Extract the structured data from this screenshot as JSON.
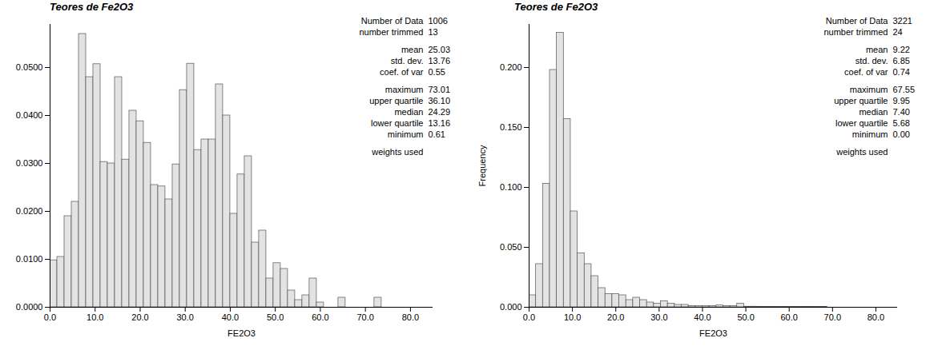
{
  "chart_data": [
    {
      "type": "histogram",
      "title": "Teores de Fe2O3",
      "x_label": "FE2O3",
      "bins": [
        0,
        1.6,
        3.2,
        4.8,
        6.4,
        8,
        9.6,
        11.2,
        12.8,
        14.4,
        16,
        17.6,
        19.2,
        20.8,
        22.4,
        24,
        25.6,
        27.2,
        28.8,
        30.4,
        32,
        33.6,
        35.2,
        36.8,
        38.4,
        40,
        41.6,
        43.2,
        44.8,
        46.4,
        48,
        49.6,
        51.2,
        52.8,
        54.4,
        56,
        57.6,
        59.2,
        60.8,
        62.4,
        64,
        65.6,
        67.2,
        68.8,
        70.4,
        72,
        73.6,
        75.2,
        76.8,
        78.4,
        80
      ],
      "values": [
        0.0098,
        0.0105,
        0.019,
        0.022,
        0.057,
        0.048,
        0.0507,
        0.0303,
        0.03,
        0.048,
        0.0308,
        0.041,
        0.0388,
        0.0343,
        0.0255,
        0.0252,
        0.0225,
        0.0298,
        0.0453,
        0.0508,
        0.0328,
        0.035,
        0.035,
        0.0465,
        0.04,
        0.0195,
        0.0277,
        0.0315,
        0.0135,
        0.016,
        0.006,
        0.0092,
        0.008,
        0.0035,
        0.0015,
        0.0025,
        0.006,
        0.001,
        0,
        0,
        0.002,
        0,
        0,
        0,
        0,
        0.002,
        0,
        0,
        0,
        0
      ],
      "color": "#e3e3e3",
      "xlim": [
        0,
        85
      ],
      "xticks": [
        {
          "value": 0,
          "label": "0.0"
        },
        {
          "value": 10,
          "label": "10.0"
        },
        {
          "value": 20,
          "label": "20.0"
        },
        {
          "value": 30,
          "label": "30.0"
        },
        {
          "value": 40,
          "label": "40.0"
        },
        {
          "value": 50,
          "label": "50.0"
        },
        {
          "value": 60,
          "label": "60.0"
        },
        {
          "value": 70,
          "label": "70.0"
        },
        {
          "value": 80,
          "label": "80.0"
        }
      ],
      "ylim": [
        0,
        0.059
      ],
      "yticks": [
        {
          "value": 0,
          "label": "0.0000"
        },
        {
          "value": 0.01,
          "label": "0.0100"
        },
        {
          "value": 0.02,
          "label": "0.0200"
        },
        {
          "value": 0.03,
          "label": "0.0300"
        },
        {
          "value": 0.04,
          "label": "0.0400"
        },
        {
          "value": 0.05,
          "label": "0.0500"
        }
      ],
      "stats": [
        [
          {
            "label": "Number of Data",
            "value": 1006
          },
          {
            "label": "number trimmed",
            "value": 13
          }
        ],
        [
          {
            "label": "mean",
            "value": 25.03
          },
          {
            "label": "std. dev.",
            "value": 13.76
          },
          {
            "label": "coef. of var",
            "value": 0.55
          }
        ],
        [
          {
            "label": "maximum",
            "value": 73.01
          },
          {
            "label": "upper quartile",
            "value": 36.1,
            "value_label": "36.10"
          },
          {
            "label": "median",
            "value": 24.29
          },
          {
            "label": "lower quartile",
            "value": 13.16
          },
          {
            "label": "minimum",
            "value": 0.61
          }
        ],
        [
          {
            "label": "weights used"
          }
        ]
      ]
    },
    {
      "type": "histogram",
      "title": "Teores de Fe2O3",
      "x_label": "FE2O3",
      "y_label": "Frequency",
      "bins": [
        0,
        1.6,
        3.2,
        4.8,
        6.4,
        8,
        9.6,
        11.2,
        12.8,
        14.4,
        16,
        17.6,
        19.2,
        20.8,
        22.4,
        24,
        25.6,
        27.2,
        28.8,
        30.4,
        32,
        33.6,
        35.2,
        36.8,
        38.4,
        40,
        41.6,
        43.2,
        44.8,
        46.4,
        48,
        49.6,
        51.2,
        52.8,
        54.4,
        56,
        57.6,
        59.2,
        60.8,
        62.4,
        64,
        65.6,
        67.2,
        68.8,
        70.4,
        72,
        73.6,
        75.2,
        76.8,
        78.4,
        80
      ],
      "values": [
        0.01,
        0.036,
        0.103,
        0.198,
        0.229,
        0.157,
        0.08,
        0.045,
        0.036,
        0.026,
        0.016,
        0.011,
        0.011,
        0.01,
        0.006,
        0.008,
        0.006,
        0.004,
        0.003,
        0.005,
        0.003,
        0.002,
        0.002,
        0.001,
        0.001,
        0.001,
        0.001,
        0.0015,
        0.001,
        0.001,
        0.003,
        0.0005,
        0.0005,
        0.0003,
        0.0003,
        0.0003,
        0.0003,
        0.0003,
        0.0003,
        0.0003,
        0.0003,
        0.0003,
        0.0003,
        0,
        0,
        0,
        0,
        0,
        0,
        0
      ],
      "color": "#e3e3e3",
      "xlim": [
        0,
        85
      ],
      "xticks": [
        {
          "value": 0,
          "label": "0.0"
        },
        {
          "value": 10,
          "label": "10.0"
        },
        {
          "value": 20,
          "label": "20.0"
        },
        {
          "value": 30,
          "label": "30.0"
        },
        {
          "value": 40,
          "label": "40.0"
        },
        {
          "value": 50,
          "label": "50.0"
        },
        {
          "value": 60,
          "label": "60.0"
        },
        {
          "value": 70,
          "label": "70.0"
        },
        {
          "value": 80,
          "label": "80.0"
        }
      ],
      "ylim": [
        0,
        0.236
      ],
      "yticks": [
        {
          "value": 0,
          "label": "0.000"
        },
        {
          "value": 0.05,
          "label": "0.050"
        },
        {
          "value": 0.1,
          "label": "0.100"
        },
        {
          "value": 0.15,
          "label": "0.150"
        },
        {
          "value": 0.2,
          "label": "0.200"
        }
      ],
      "stats": [
        [
          {
            "label": "Number of Data",
            "value": 3221
          },
          {
            "label": "number trimmed",
            "value": 24
          }
        ],
        [
          {
            "label": "mean",
            "value": 9.22
          },
          {
            "label": "std. dev.",
            "value": 6.85
          },
          {
            "label": "coef. of var",
            "value": 0.74
          }
        ],
        [
          {
            "label": "maximum",
            "value": 67.55
          },
          {
            "label": "upper quartile",
            "value": 9.95
          },
          {
            "label": "median",
            "value": 7.4,
            "value_label": "7.40"
          },
          {
            "label": "lower quartile",
            "value": 5.68
          },
          {
            "label": "minimum",
            "value": 0,
            "value_label": "0.00"
          }
        ],
        [
          {
            "label": "weights used"
          }
        ]
      ]
    }
  ]
}
